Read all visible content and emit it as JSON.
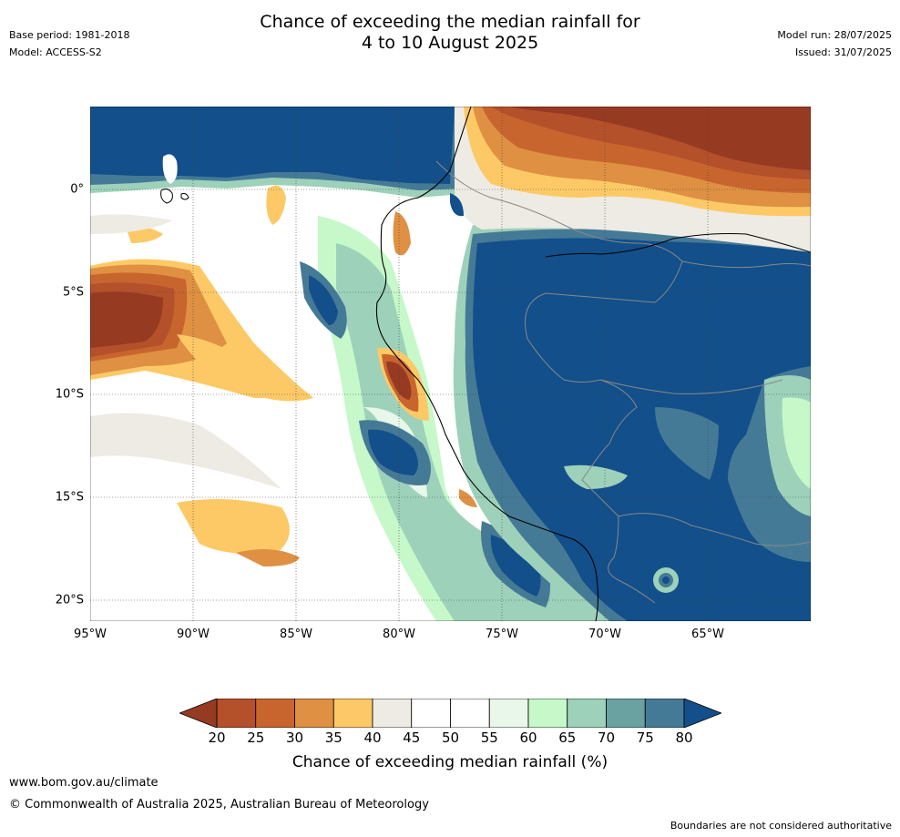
{
  "header": {
    "title_line1": "Chance of exceeding the median rainfall for",
    "title_line2": "4 to 10 August 2025",
    "base_period": "Base period: 1981-2018",
    "model": "Model: ACCESS-S2",
    "model_run": "Model run: 28/07/2025",
    "issued": "Issued: 31/07/2025"
  },
  "map": {
    "region": "Western South America and adjacent Pacific Ocean",
    "lat_labels": [
      "0°",
      "5°S",
      "10°S",
      "15°S",
      "20°S"
    ],
    "lon_labels": [
      "95°W",
      "90°W",
      "85°W",
      "80°W",
      "75°W",
      "70°W",
      "65°W"
    ],
    "colors": {
      "20-25": "#b4502a",
      "25-30": "#c8652e",
      "30-35": "#df9043",
      "35-40": "#fdc966",
      "40-45": "#eeebe4",
      "45-55": "#ffffff",
      "55-60": "#e9f6ea",
      "60-65": "#c6f8c9",
      "65-70": "#9dd1ba",
      "70-75": "#6aa2a2",
      "75-80": "#457a96",
      "below": "#973a22",
      "above": "#134f8a"
    }
  },
  "colorbar": {
    "ticks": [
      "20",
      "25",
      "30",
      "35",
      "40",
      "45",
      "50",
      "55",
      "60",
      "65",
      "70",
      "75",
      "80"
    ],
    "label": "Chance of exceeding median rainfall (%)",
    "colors": [
      "#b4502a",
      "#c8652e",
      "#df9043",
      "#fdc966",
      "#eeebe4",
      "#ffffff",
      "#ffffff",
      "#e9f6ea",
      "#c6f8c9",
      "#9dd1ba",
      "#6aa2a2",
      "#457a96"
    ],
    "low_extend_color": "#973a22",
    "high_extend_color": "#134f8a"
  },
  "footer": {
    "url": "www.bom.gov.au/climate",
    "copyright": "© Commonwealth of Australia 2025, Australian Bureau of Meteorology",
    "disclaimer": "Boundaries are not considered authoritative"
  }
}
